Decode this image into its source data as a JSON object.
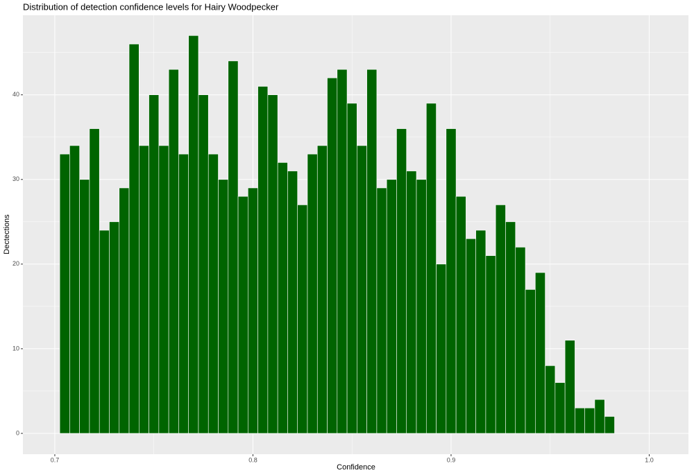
{
  "chart_data": {
    "type": "histogram",
    "title": "Distribution of detection confidence levels for Hairy Woodpecker",
    "x_label": "Confidence",
    "y_label": "Dectections",
    "bins": [
      0.7025,
      0.7075,
      0.7125,
      0.7175,
      0.7225,
      0.7275,
      0.7325,
      0.7375,
      0.7425,
      0.7475,
      0.7525,
      0.7575,
      0.7625,
      0.7675,
      0.7725,
      0.7775,
      0.7825,
      0.7875,
      0.7925,
      0.7975,
      0.8025,
      0.8075,
      0.8125,
      0.8175,
      0.8225,
      0.8275,
      0.8325,
      0.8375,
      0.8425,
      0.8475,
      0.8525,
      0.8575,
      0.8625,
      0.8675,
      0.8725,
      0.8775,
      0.8825,
      0.8875,
      0.8925,
      0.8975,
      0.9025,
      0.9075,
      0.9125,
      0.9175,
      0.9225,
      0.9275,
      0.9325,
      0.9375,
      0.9425,
      0.9475,
      0.9525,
      0.9575,
      0.9625,
      0.9675,
      0.9725,
      0.9775,
      0.9825
    ],
    "values": [
      33,
      34,
      30,
      36,
      24,
      25,
      29,
      46,
      34,
      40,
      34,
      43,
      33,
      47,
      40,
      33,
      30,
      44,
      28,
      29,
      41,
      40,
      32,
      31,
      27,
      33,
      34,
      42,
      43,
      39,
      34,
      43,
      29,
      30,
      36,
      31,
      30,
      39,
      20,
      36,
      28,
      23,
      24,
      21,
      27,
      25,
      22,
      17,
      19,
      8,
      6,
      11,
      3,
      3,
      4,
      2
    ],
    "color": "#006400",
    "xlim": [
      0.6839,
      1.0198
    ],
    "ylim": [
      -2.46,
      49.4
    ],
    "xticks": [
      0.7,
      0.8,
      0.9,
      {
        "value": 1,
        "label": "1.0"
      }
    ],
    "yticks": [
      0,
      10,
      20,
      30,
      40
    ],
    "grid": true
  }
}
